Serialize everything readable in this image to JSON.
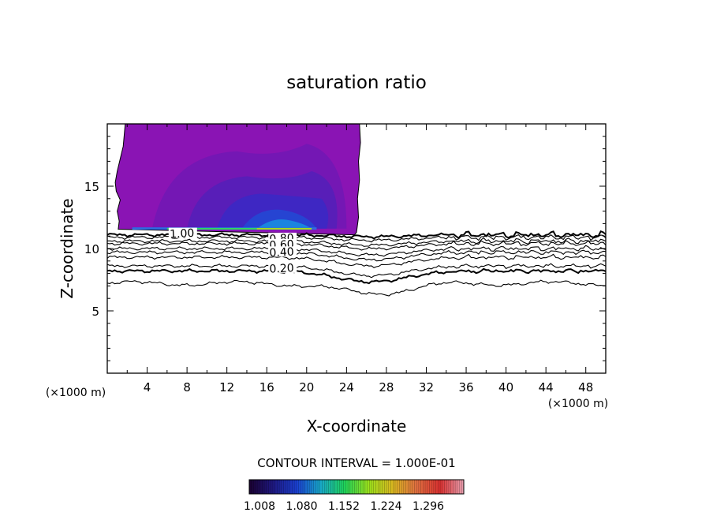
{
  "chart_data": {
    "type": "contour",
    "title": "saturation ratio",
    "xlabel": "X-coordinate",
    "ylabel": "Z-coordinate",
    "x_unit_label_left": "(×1000 m)",
    "x_unit_label_right": "(×1000 m)",
    "xlim": [
      0,
      50
    ],
    "ylim": [
      0,
      20
    ],
    "x_ticks": [
      4,
      8,
      12,
      16,
      20,
      24,
      28,
      32,
      36,
      40,
      44,
      48
    ],
    "y_ticks": [
      5,
      10,
      15
    ],
    "contour_interval_text": "CONTOUR INTERVAL = 1.000E-01",
    "contour_labels": [
      {
        "text": "1.00",
        "x": 7.5,
        "z": 11.1
      },
      {
        "text": "0.80",
        "x": 17.5,
        "z": 10.7
      },
      {
        "text": "0.60",
        "x": 17.5,
        "z": 10.2
      },
      {
        "text": "0.40",
        "x": 17.5,
        "z": 9.6
      },
      {
        "text": "0.20",
        "x": 17.5,
        "z": 8.3
      }
    ],
    "colorbar": {
      "tick_labels": [
        "1.008",
        "1.080",
        "1.152",
        "1.224",
        "1.296"
      ],
      "colors": [
        "#1a0030",
        "#1e1880",
        "#1a3fd0",
        "#18a8c8",
        "#1fd25a",
        "#9ae01c",
        "#d8b820",
        "#e07040",
        "#d83030",
        "#e8a0b0"
      ]
    },
    "supersaturated_region": {
      "x_range": [
        1.0,
        25.0
      ],
      "z_range": [
        11.5,
        20.0
      ],
      "fill_color": "#8a14b4"
    },
    "contour_levels": [
      {
        "level": 1.0,
        "base_z": 11.1
      },
      {
        "level": 0.9,
        "base_z": 10.9
      },
      {
        "level": 0.8,
        "base_z": 10.6
      },
      {
        "level": 0.7,
        "base_z": 10.4
      },
      {
        "level": 0.6,
        "base_z": 10.0
      },
      {
        "level": 0.5,
        "base_z": 9.7
      },
      {
        "level": 0.4,
        "base_z": 9.3
      },
      {
        "level": 0.3,
        "base_z": 8.6
      },
      {
        "level": 0.2,
        "base_z": 8.2
      },
      {
        "level": 0.1,
        "base_z": 7.2
      }
    ]
  }
}
